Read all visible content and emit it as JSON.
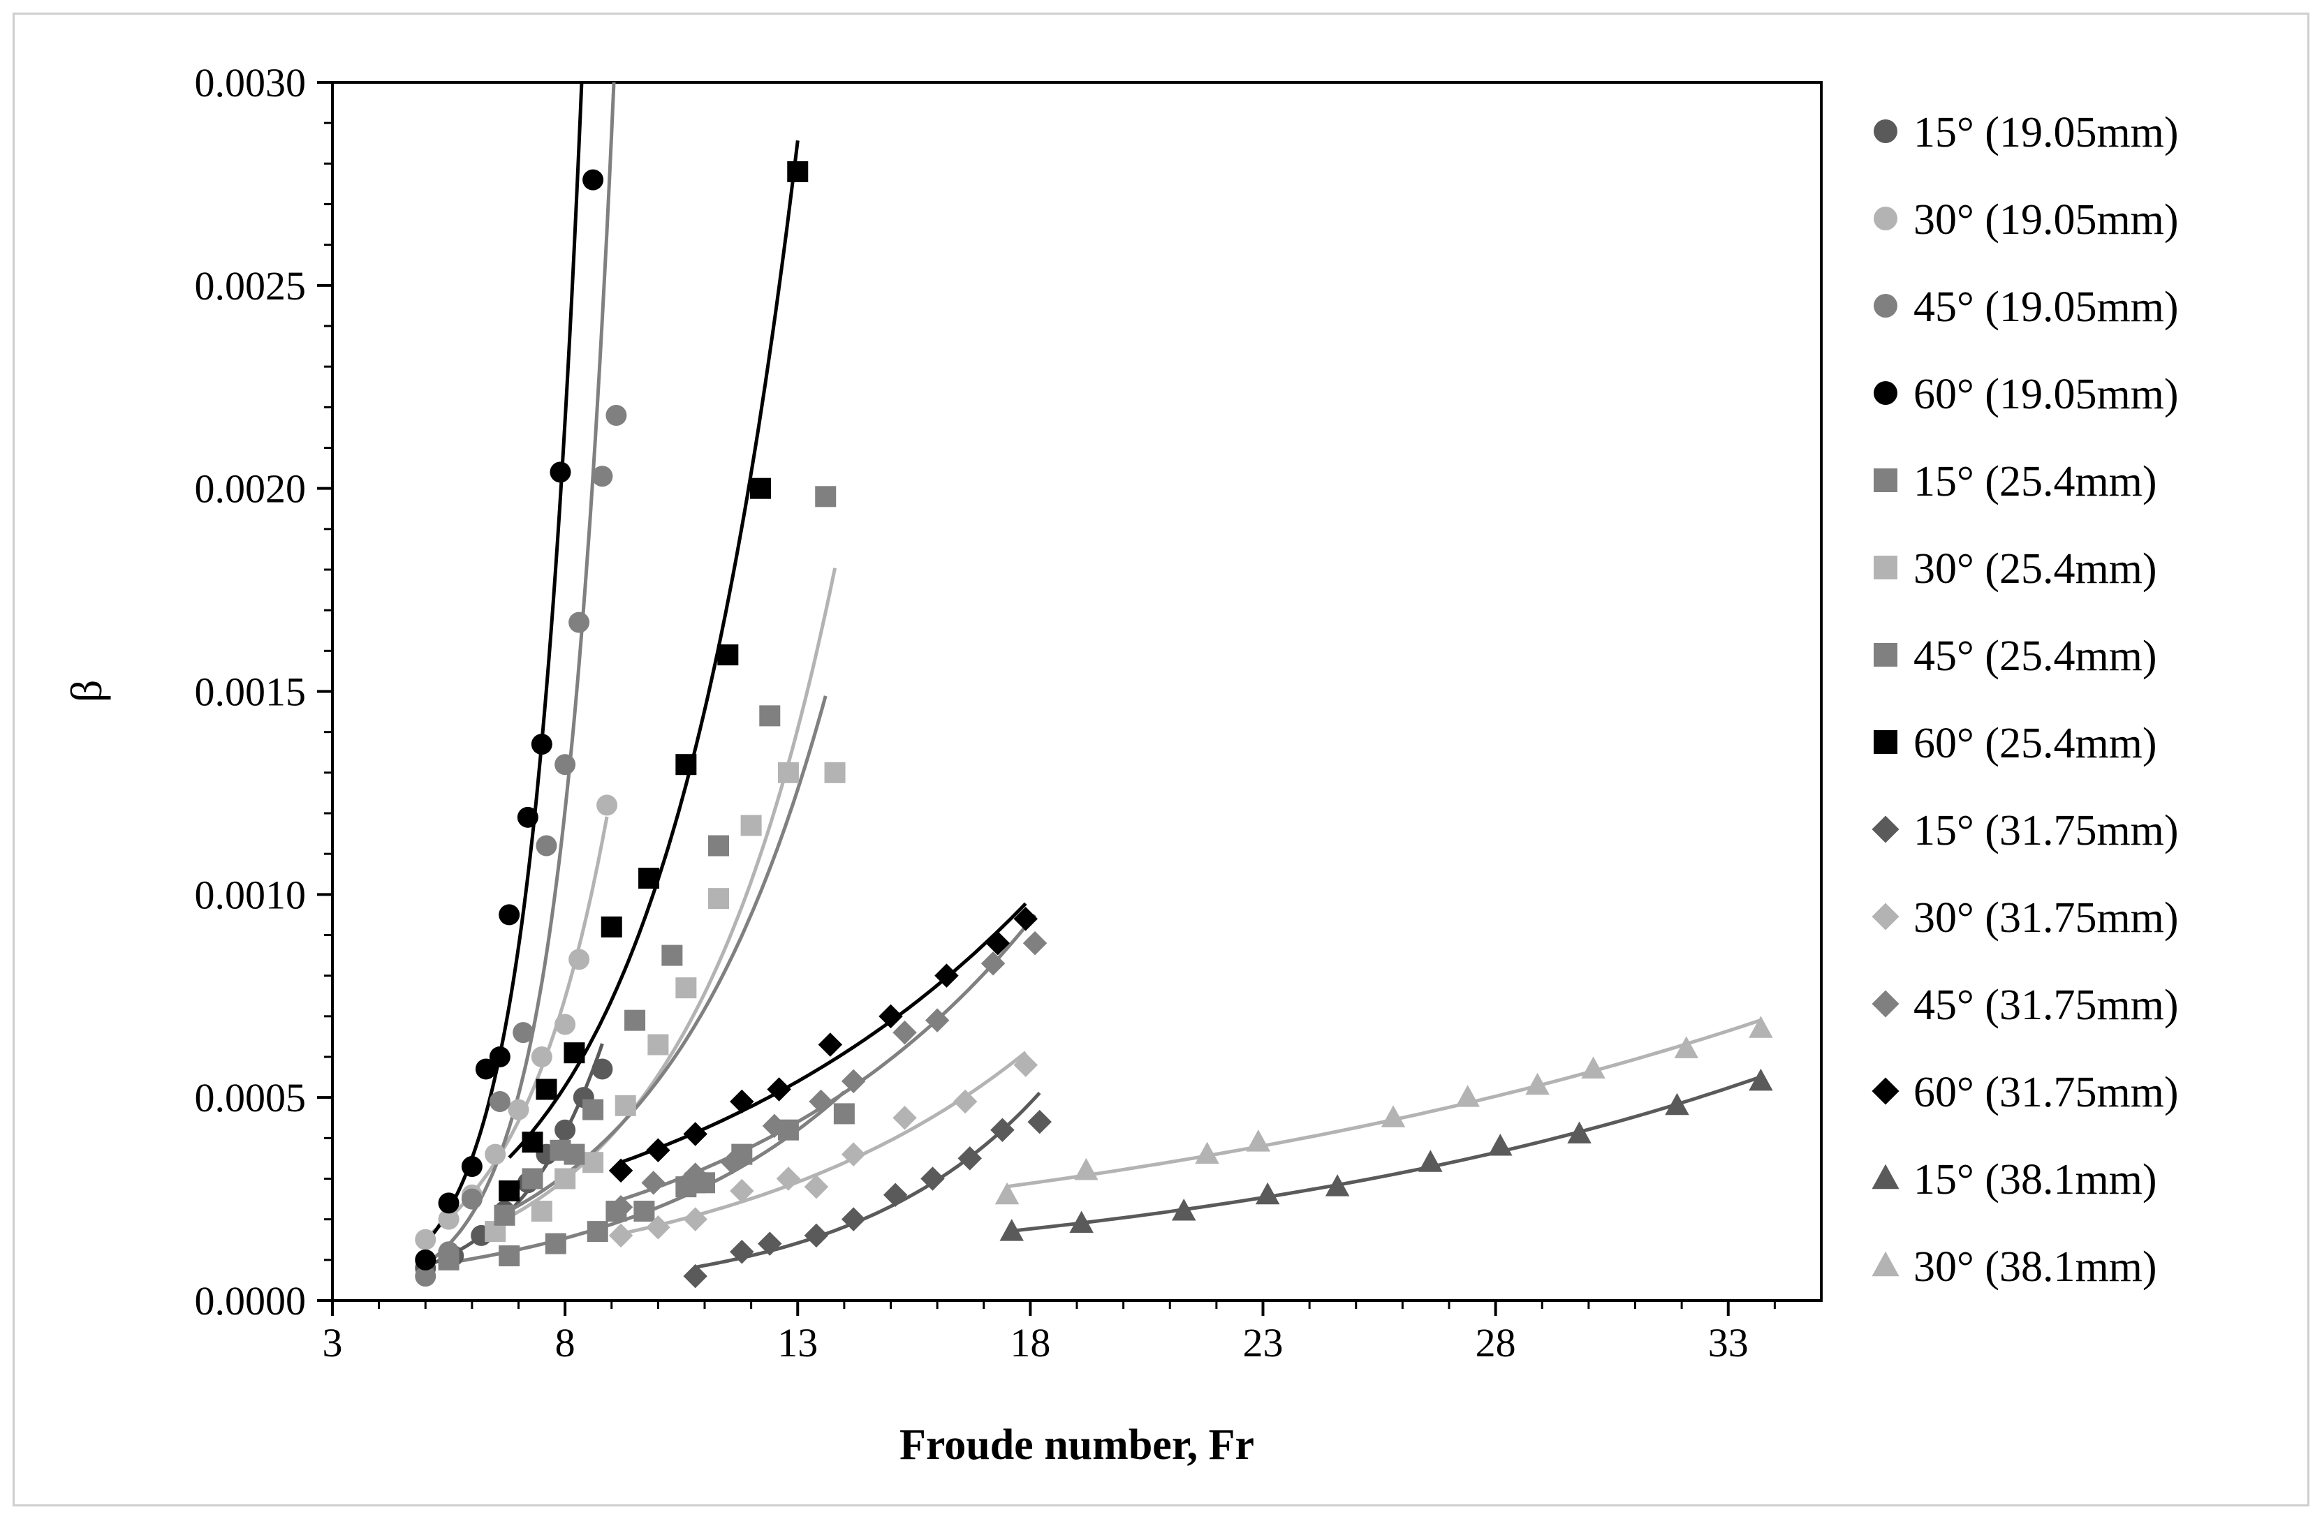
{
  "chart_data": {
    "type": "scatter",
    "xlabel": "Froude number, Fr",
    "ylabel": "β",
    "xlim": [
      3,
      35
    ],
    "ylim": [
      0,
      0.003
    ],
    "x_ticks": [
      3,
      8,
      13,
      18,
      23,
      28,
      33
    ],
    "x_tick_labels": [
      "3",
      "8",
      "13",
      "18",
      "23",
      "28",
      "33"
    ],
    "y_ticks": [
      0,
      0.0005,
      0.001,
      0.0015,
      0.002,
      0.0025,
      0.003
    ],
    "y_tick_labels": [
      "0.0000",
      "0.0005",
      "0.0010",
      "0.0015",
      "0.0020",
      "0.0025",
      "0.0030"
    ],
    "grid": false,
    "legend_position": "right",
    "series": [
      {
        "name": "15° (19.05mm)",
        "marker": "circle",
        "color": "#5a5a5a",
        "trend": "exponential",
        "x": [
          5.0,
          5.6,
          6.2,
          6.7,
          7.2,
          7.6,
          8.0,
          8.4,
          8.8
        ],
        "y": [
          8e-05,
          0.00011,
          0.00016,
          0.00022,
          0.00029,
          0.00036,
          0.00042,
          0.0005,
          0.00057
        ]
      },
      {
        "name": "30° (19.05mm)",
        "marker": "circle",
        "color": "#b3b3b3",
        "trend": "exponential",
        "x": [
          5.0,
          5.5,
          6.0,
          6.5,
          7.0,
          7.5,
          8.0,
          8.3,
          8.9
        ],
        "y": [
          0.00015,
          0.0002,
          0.00026,
          0.00036,
          0.00047,
          0.0006,
          0.00068,
          0.00084,
          0.00122
        ]
      },
      {
        "name": "45° (19.05mm)",
        "marker": "circle",
        "color": "#808080",
        "trend": "exponential",
        "x": [
          5.0,
          5.5,
          6.0,
          6.6,
          7.1,
          7.6,
          8.0,
          8.3,
          8.8,
          9.1
        ],
        "y": [
          6e-05,
          0.00012,
          0.00025,
          0.00049,
          0.00066,
          0.00112,
          0.00132,
          0.00167,
          0.00203,
          0.00218
        ]
      },
      {
        "name": "60° (19.05mm)",
        "marker": "circle",
        "color": "#000000",
        "trend": "exponential",
        "x": [
          5.0,
          5.5,
          6.0,
          6.3,
          6.6,
          6.8,
          7.2,
          7.5,
          7.9,
          8.6
        ],
        "y": [
          0.0001,
          0.00024,
          0.00033,
          0.00057,
          0.0006,
          0.00095,
          0.00119,
          0.00137,
          0.00204,
          0.00276
        ]
      },
      {
        "name": "15° (25.4mm)",
        "marker": "square",
        "color": "#808080",
        "trend": "exponential",
        "x": [
          5.5,
          6.8,
          7.8,
          8.7,
          9.7,
          10.8,
          11.8,
          12.8,
          14.0
        ],
        "y": [
          0.0001,
          0.00011,
          0.00014,
          0.00017,
          0.00022,
          0.00029,
          0.00036,
          0.00042,
          0.00046
        ]
      },
      {
        "name": "30° (25.4mm)",
        "marker": "square",
        "color": "#b3b3b3",
        "trend": "exponential",
        "x": [
          6.5,
          7.5,
          8.0,
          8.6,
          9.3,
          10.0,
          10.6,
          11.3,
          12.0,
          12.8,
          13.8
        ],
        "y": [
          0.00017,
          0.00022,
          0.0003,
          0.00034,
          0.00048,
          0.00063,
          0.00077,
          0.00099,
          0.00117,
          0.0013,
          0.0013
        ]
      },
      {
        "name": "45° (25.4mm)",
        "marker": "square",
        "color": "#808080",
        "trend": "exponential",
        "x": [
          6.7,
          7.3,
          7.9,
          8.6,
          9.5,
          10.3,
          11.3,
          12.4,
          13.6,
          11.0,
          10.6,
          9.1,
          8.2
        ],
        "y": [
          0.00021,
          0.0003,
          0.00037,
          0.00047,
          0.00069,
          0.00085,
          0.00112,
          0.00144,
          0.00198,
          0.00029,
          0.00028,
          0.00022,
          0.00036
        ]
      },
      {
        "name": "60° (25.4mm)",
        "marker": "square",
        "color": "#000000",
        "trend": "exponential",
        "x": [
          6.8,
          7.3,
          7.6,
          8.2,
          9.0,
          9.8,
          10.6,
          11.5,
          12.2,
          13.0
        ],
        "y": [
          0.00027,
          0.00039,
          0.00052,
          0.00061,
          0.00092,
          0.00104,
          0.00132,
          0.00159,
          0.002,
          0.00278
        ]
      },
      {
        "name": "15° (31.75mm)",
        "marker": "diamond",
        "color": "#5a5a5a",
        "trend": "exponential",
        "x": [
          10.8,
          11.8,
          12.4,
          13.4,
          14.2,
          15.1,
          15.9,
          16.7,
          17.4,
          18.2
        ],
        "y": [
          6e-05,
          0.00012,
          0.00014,
          0.00016,
          0.0002,
          0.00026,
          0.0003,
          0.00035,
          0.00042,
          0.00044
        ]
      },
      {
        "name": "30° (31.75mm)",
        "marker": "diamond",
        "color": "#b3b3b3",
        "trend": "exponential",
        "x": [
          9.2,
          10.0,
          10.8,
          11.8,
          12.8,
          13.4,
          14.2,
          15.3,
          16.6,
          17.9
        ],
        "y": [
          0.00016,
          0.00018,
          0.0002,
          0.00027,
          0.0003,
          0.00028,
          0.00036,
          0.00045,
          0.00049,
          0.00058
        ]
      },
      {
        "name": "45° (31.75mm)",
        "marker": "diamond",
        "color": "#808080",
        "trend": "exponential",
        "x": [
          9.2,
          9.9,
          10.8,
          11.6,
          12.5,
          13.5,
          14.2,
          15.3,
          16.0,
          17.2,
          18.1
        ],
        "y": [
          0.00023,
          0.00029,
          0.00031,
          0.00034,
          0.00043,
          0.00049,
          0.00054,
          0.00066,
          0.00069,
          0.00083,
          0.00088
        ]
      },
      {
        "name": "60° (31.75mm)",
        "marker": "diamond",
        "color": "#000000",
        "trend": "exponential",
        "x": [
          9.2,
          10.0,
          10.8,
          11.8,
          12.6,
          13.7,
          15.0,
          16.2,
          17.3,
          17.9
        ],
        "y": [
          0.00032,
          0.00037,
          0.00041,
          0.00049,
          0.00052,
          0.00063,
          0.0007,
          0.0008,
          0.00088,
          0.00094
        ]
      },
      {
        "name": "15° (38.1mm)",
        "marker": "triangle",
        "color": "#5a5a5a",
        "trend": "exponential",
        "x": [
          17.6,
          19.1,
          21.3,
          23.1,
          24.6,
          26.6,
          28.1,
          29.8,
          31.9,
          33.7
        ],
        "y": [
          0.00017,
          0.00019,
          0.00022,
          0.00026,
          0.00028,
          0.00034,
          0.00038,
          0.00041,
          0.00048,
          0.00054
        ]
      },
      {
        "name": "30° (38.1mm)",
        "marker": "triangle",
        "color": "#b3b3b3",
        "trend": "exponential",
        "x": [
          17.5,
          19.2,
          21.8,
          22.9,
          25.8,
          27.4,
          28.9,
          30.1,
          32.1,
          33.7
        ],
        "y": [
          0.00026,
          0.00032,
          0.00036,
          0.00039,
          0.00045,
          0.0005,
          0.00053,
          0.00057,
          0.00062,
          0.00067
        ]
      }
    ]
  }
}
